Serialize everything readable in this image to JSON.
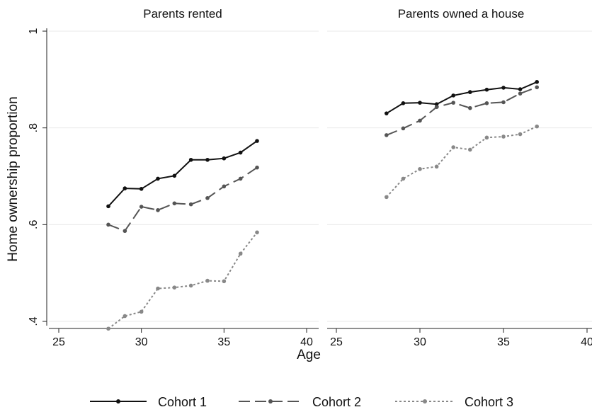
{
  "chart_data": {
    "type": "line",
    "xlabel": "Age",
    "ylabel": "Home ownership proportion",
    "xlim": [
      25,
      40
    ],
    "ylim": [
      0.4,
      1.0
    ],
    "x_ticks": [
      25,
      30,
      35,
      40
    ],
    "y_ticks": [
      0.4,
      0.6,
      0.8,
      1.0
    ],
    "x_tick_labels": [
      "25",
      "30",
      "35",
      "40"
    ],
    "y_tick_labels": [
      ".4",
      ".6",
      ".8",
      "1"
    ],
    "grid": true,
    "legend_position": "bottom",
    "series_styles": [
      {
        "name": "Cohort 1",
        "color": "#111111",
        "dash": "solid"
      },
      {
        "name": "Cohort 2",
        "color": "#555555",
        "dash": "long-dash"
      },
      {
        "name": "Cohort 3",
        "color": "#888888",
        "dash": "dotted"
      }
    ],
    "panels": [
      {
        "title": "Parents rented",
        "x": [
          28,
          29,
          30,
          31,
          32,
          33,
          34,
          35,
          36,
          37
        ],
        "series": [
          {
            "name": "Cohort 1",
            "values": [
              0.638,
              0.675,
              0.674,
              0.695,
              0.701,
              0.734,
              0.734,
              0.737,
              0.749,
              0.773
            ]
          },
          {
            "name": "Cohort 2",
            "values": [
              0.6,
              0.587,
              0.637,
              0.63,
              0.644,
              0.642,
              0.655,
              0.679,
              0.695,
              0.718
            ]
          },
          {
            "name": "Cohort 3",
            "values": [
              0.385,
              0.411,
              0.42,
              0.468,
              0.47,
              0.474,
              0.484,
              0.483,
              0.54,
              0.584
            ]
          }
        ]
      },
      {
        "title": "Parents owned a house",
        "x": [
          28,
          29,
          30,
          31,
          32,
          33,
          34,
          35,
          36,
          37
        ],
        "series": [
          {
            "name": "Cohort 1",
            "values": [
              0.83,
              0.851,
              0.852,
              0.849,
              0.867,
              0.874,
              0.879,
              0.883,
              0.88,
              0.895
            ]
          },
          {
            "name": "Cohort 2",
            "values": [
              0.785,
              0.799,
              0.815,
              0.843,
              0.852,
              0.841,
              0.851,
              0.853,
              0.871,
              0.884
            ]
          },
          {
            "name": "Cohort 3",
            "values": [
              0.657,
              0.695,
              0.715,
              0.72,
              0.76,
              0.755,
              0.78,
              0.782,
              0.787,
              0.803
            ]
          }
        ]
      }
    ]
  }
}
